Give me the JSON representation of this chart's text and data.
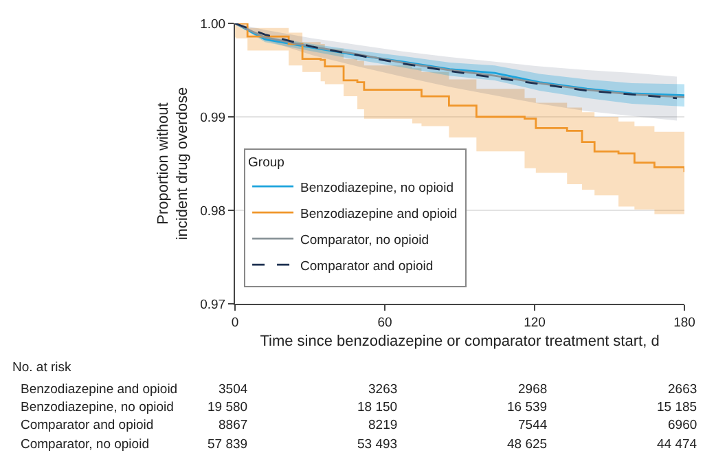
{
  "chart_data": {
    "type": "line",
    "xlabel": "Time since benzodiazepine or comparator treatment start, d",
    "ylabel": "Proportion without incident drug overdose",
    "legend_title": "Group",
    "legend": "bottom left",
    "grid": "y",
    "xlim": [
      0,
      180
    ],
    "xticks": [
      0,
      60,
      120,
      180
    ],
    "ylim": [
      0.97,
      1.0
    ],
    "yticks": [
      0.97,
      0.98,
      0.99,
      {
        "value": 1.0,
        "label": "1.00"
      }
    ],
    "series": [
      {
        "name": "Benzodiazepine, no opioid",
        "color": "#1ba3dc",
        "x": [
          0,
          12,
          31,
          49,
          67,
          86,
          104,
          122,
          141,
          159,
          180
        ],
        "values": [
          1.0,
          0.9983,
          0.9974,
          0.9966,
          0.9959,
          0.9951,
          0.9947,
          0.9937,
          0.993,
          0.9925,
          0.9923
        ],
        "lower": [
          1.0,
          0.998,
          0.997,
          0.9961,
          0.9953,
          0.9944,
          0.9939,
          0.9928,
          0.992,
          0.9914,
          0.9911
        ],
        "upper": [
          1.0,
          0.9986,
          0.9978,
          0.9971,
          0.9965,
          0.9958,
          0.9955,
          0.9946,
          0.994,
          0.9936,
          0.9935
        ]
      },
      {
        "name": "Benzodiazepine and opioid",
        "color": "#f0962a",
        "type": "step",
        "x": [
          0,
          0.4,
          5,
          21.5,
          27,
          34.3,
          36,
          43.5,
          49,
          51.7,
          71,
          74.7,
          85.7,
          96.7,
          116,
          120.5,
          133,
          139,
          144,
          153.6,
          160,
          168,
          180
        ],
        "values": [
          1.0,
          1.0,
          0.9986,
          0.9978,
          0.9962,
          0.9961,
          0.9954,
          0.9939,
          0.9937,
          0.9929,
          0.9929,
          0.9922,
          0.9912,
          0.99,
          0.9898,
          0.9888,
          0.9885,
          0.9873,
          0.9863,
          0.9861,
          0.9851,
          0.9846,
          0.9841
        ],
        "lower": [
          0.9985,
          0.9984,
          0.9971,
          0.9955,
          0.9948,
          0.9938,
          0.9935,
          0.9922,
          0.9908,
          0.9898,
          0.9893,
          0.989,
          0.9878,
          0.9863,
          0.9845,
          0.984,
          0.9828,
          0.9822,
          0.9816,
          0.9804,
          0.9801,
          0.9796,
          0.9789
        ],
        "upper": [
          1.0,
          1.0,
          0.9995,
          0.999,
          0.998,
          0.9978,
          0.9973,
          0.9962,
          0.996,
          0.9955,
          0.9952,
          0.9948,
          0.994,
          0.993,
          0.992,
          0.9915,
          0.991,
          0.9905,
          0.99,
          0.9895,
          0.989,
          0.9884,
          0.9878
        ]
      },
      {
        "name": "Comparator, no opioid",
        "color": "#8a9499",
        "x": [
          0,
          12,
          31,
          49,
          67,
          86,
          104,
          122,
          141,
          159,
          180
        ],
        "values": [
          1.0,
          0.9985,
          0.9975,
          0.9967,
          0.9958,
          0.995,
          0.9944,
          0.9936,
          0.9929,
          0.9924,
          0.9921
        ]
      },
      {
        "name": "Comparator and opioid",
        "color": "#1d3050",
        "line_style": "dashed",
        "x": [
          0,
          12,
          31,
          49,
          67,
          86,
          104,
          122,
          141,
          159,
          177
        ],
        "values": [
          1.0,
          0.9988,
          0.9975,
          0.9966,
          0.9957,
          0.9949,
          0.9942,
          0.9935,
          0.9928,
          0.9924,
          0.992
        ],
        "lower": [
          1.0,
          0.9982,
          0.9966,
          0.9954,
          0.9943,
          0.9932,
          0.9923,
          0.9914,
          0.9906,
          0.9901,
          0.9896
        ],
        "upper": [
          1.0,
          0.9993,
          0.9984,
          0.9977,
          0.997,
          0.9964,
          0.9959,
          0.9954,
          0.995,
          0.9947,
          0.9943
        ]
      }
    ],
    "annotations": [
      "No. at risk",
      "Benzodiazepine and opioid",
      "3504",
      "3263",
      "2968",
      "2663",
      "Benzodiazepine, no opioid",
      "19 580",
      "18 150",
      "16 539",
      "15 185",
      "Comparator and opioid",
      "8867",
      "8219",
      "7544",
      "6960",
      "Comparator, no opioid",
      "57 839",
      "53 493",
      "48 625",
      "44 474"
    ]
  }
}
